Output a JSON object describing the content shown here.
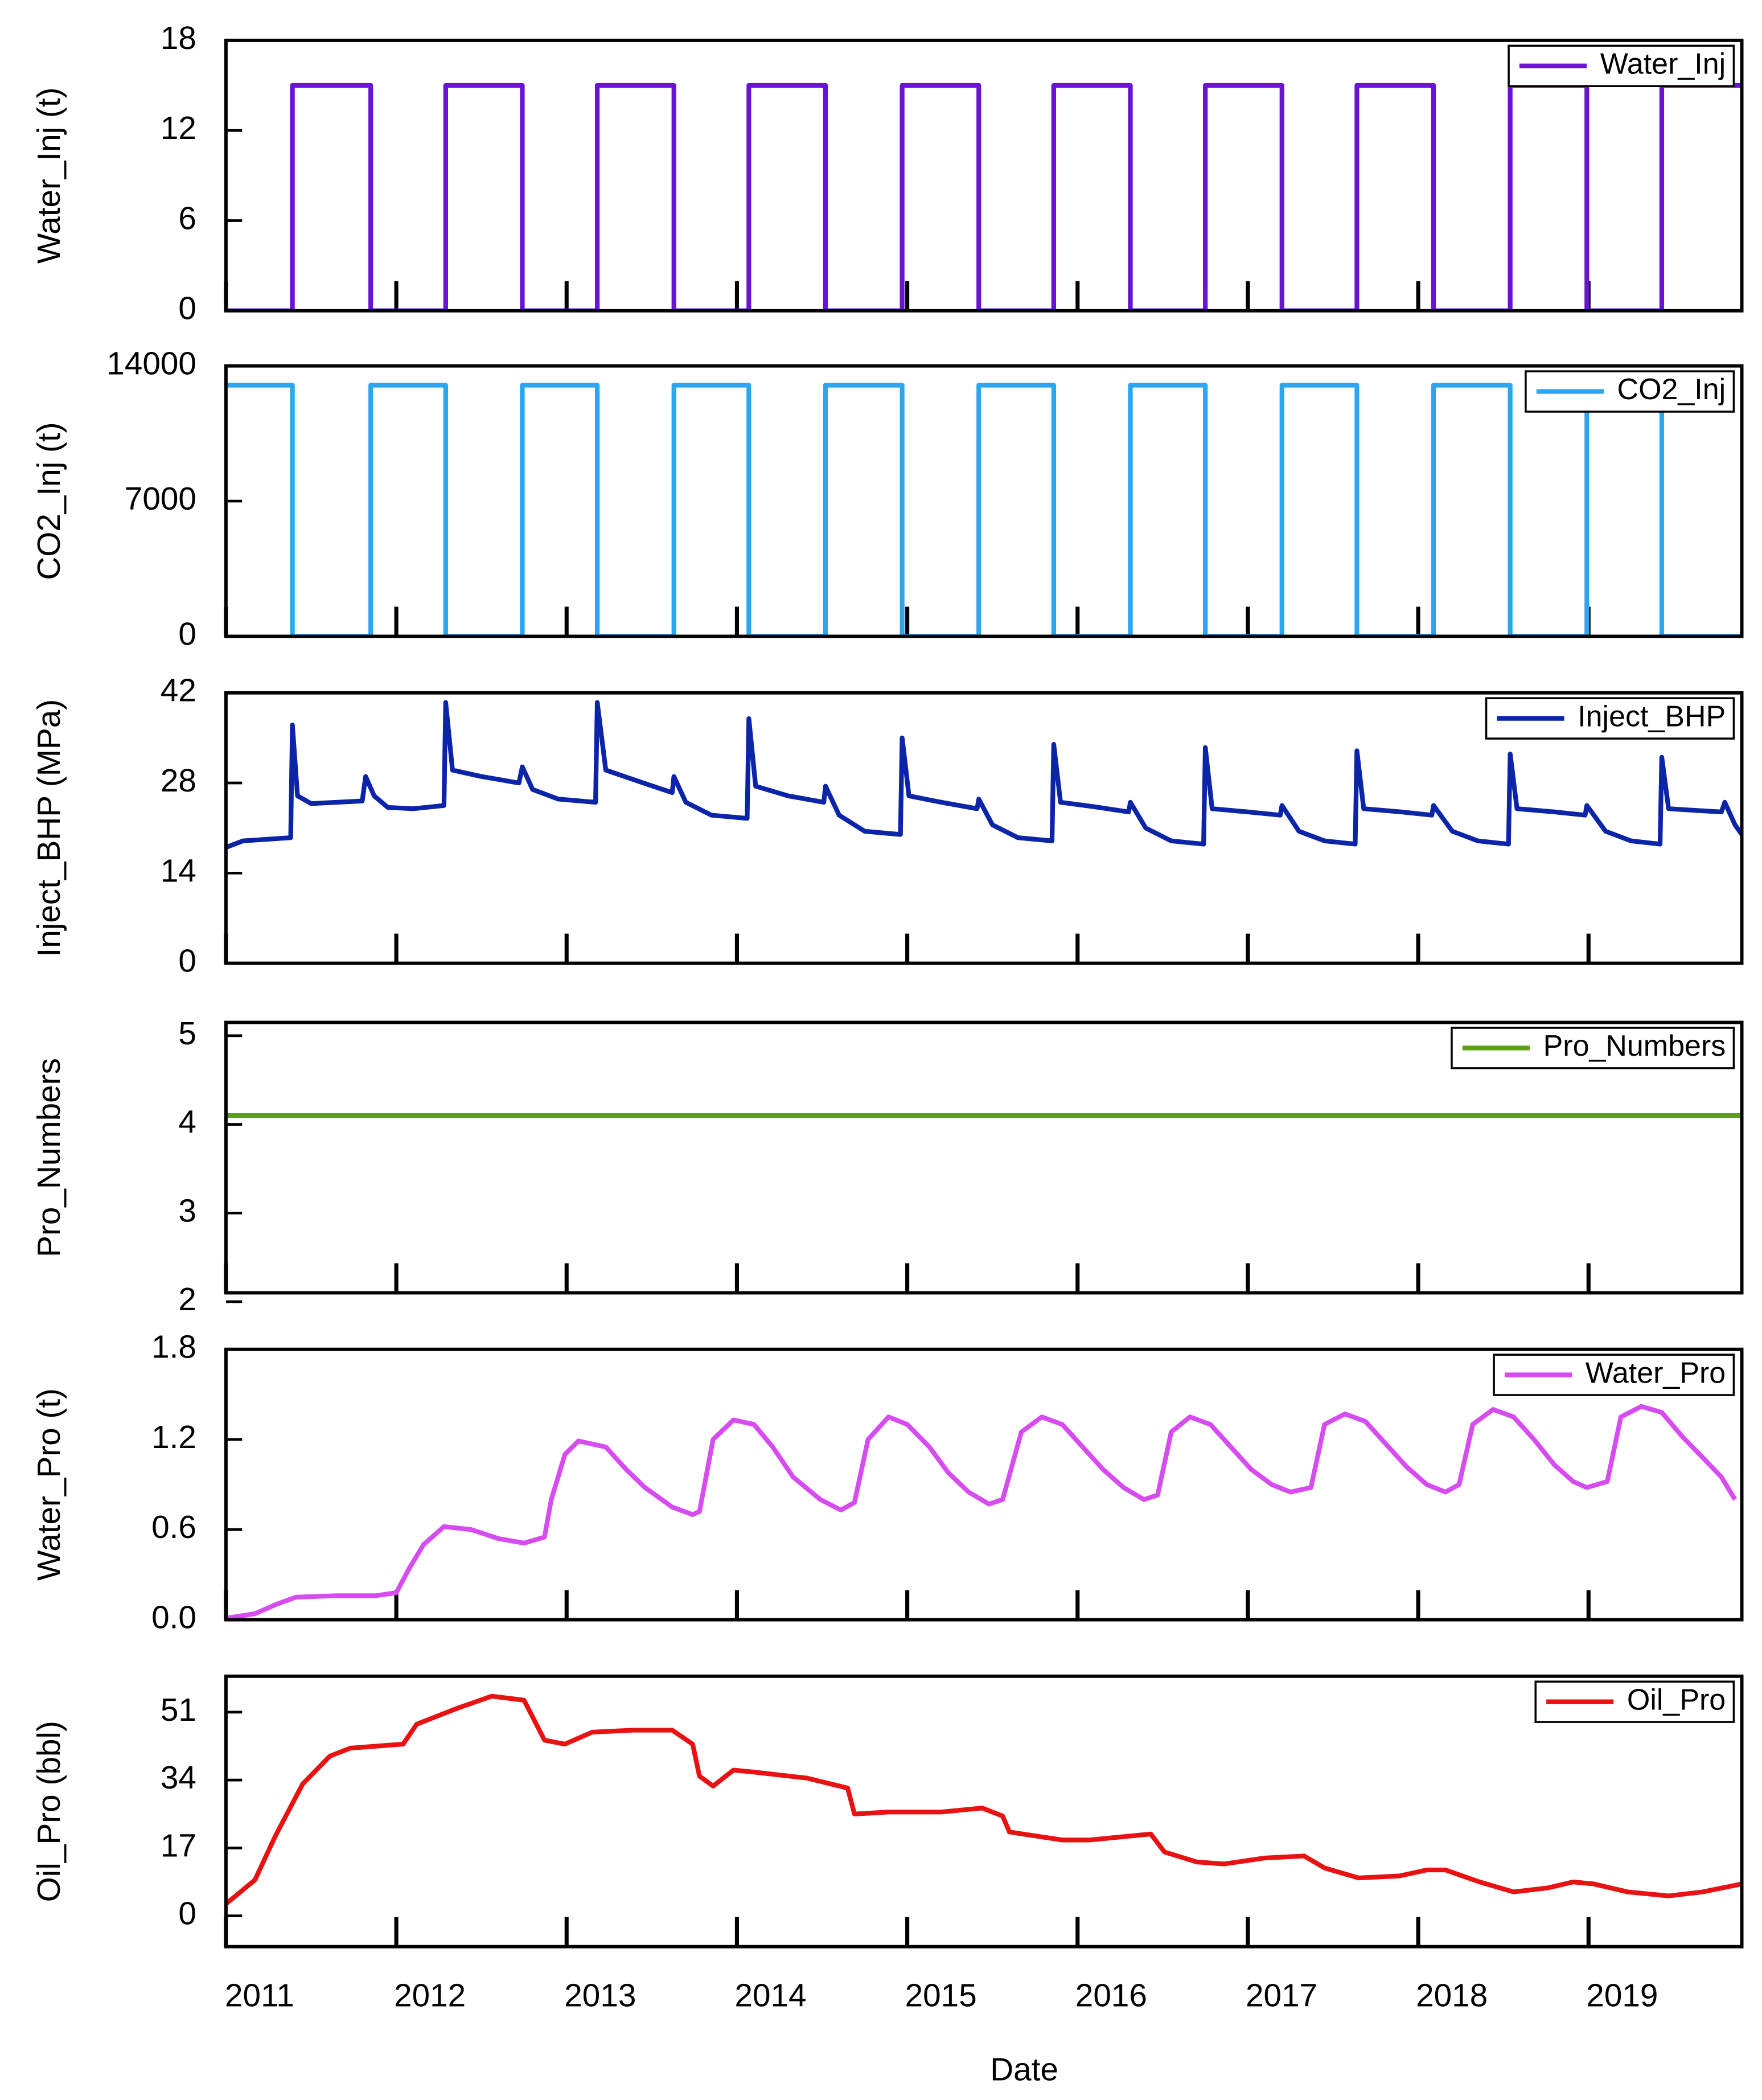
{
  "chart_data": [
    {
      "type": "line",
      "ylabel": "Water_Inj (t)",
      "legend": "upper right",
      "x": [
        2011.0,
        2011.39,
        2011.39,
        2011.85,
        2011.85,
        2012.29,
        2012.29,
        2012.74,
        2012.74,
        2013.18,
        2013.18,
        2013.63,
        2013.63,
        2014.07,
        2014.07,
        2014.52,
        2014.52,
        2014.97,
        2014.97,
        2015.42,
        2015.42,
        2015.86,
        2015.86,
        2016.31,
        2016.31,
        2016.75,
        2016.75,
        2017.2,
        2017.2,
        2017.64,
        2017.64,
        2018.09,
        2018.09,
        2018.54,
        2018.54,
        2018.99,
        2018.99,
        2019.43,
        2019.43,
        2019.9
      ],
      "series": [
        {
          "name": "Water_Inj",
          "color": "#6a12d6",
          "values": [
            0,
            0,
            15,
            15,
            0,
            0,
            15,
            15,
            0,
            0,
            15,
            15,
            0,
            0,
            15,
            15,
            0,
            0,
            15,
            15,
            0,
            0,
            15,
            15,
            0,
            0,
            15,
            15,
            0,
            0,
            15,
            15,
            0,
            0,
            15,
            15,
            0,
            0,
            15,
            15
          ]
        }
      ],
      "xlim": [
        2011,
        2019.9
      ],
      "xticks": [
        2011,
        2012,
        2013,
        2014,
        2015,
        2016,
        2017,
        2018,
        2019
      ],
      "ylim": [
        0,
        18
      ],
      "yticks": [
        0,
        6,
        12,
        18
      ]
    },
    {
      "type": "line",
      "ylabel": "CO2_Inj (t)",
      "legend": "upper right",
      "x": [
        2011.0,
        2011.39,
        2011.39,
        2011.85,
        2011.85,
        2012.29,
        2012.29,
        2012.74,
        2012.74,
        2013.18,
        2013.18,
        2013.63,
        2013.63,
        2014.07,
        2014.07,
        2014.52,
        2014.52,
        2014.97,
        2014.97,
        2015.42,
        2015.42,
        2015.86,
        2015.86,
        2016.31,
        2016.31,
        2016.75,
        2016.75,
        2017.2,
        2017.2,
        2017.64,
        2017.64,
        2018.09,
        2018.09,
        2018.54,
        2018.54,
        2018.99,
        2018.99,
        2019.43,
        2019.43,
        2019.9
      ],
      "series": [
        {
          "name": "CO2_Inj",
          "color": "#2ba7ef",
          "values": [
            13000,
            13000,
            0,
            0,
            13000,
            13000,
            0,
            0,
            13000,
            13000,
            0,
            0,
            13000,
            13000,
            0,
            0,
            13000,
            13000,
            0,
            0,
            13000,
            13000,
            0,
            0,
            13000,
            13000,
            0,
            0,
            13000,
            13000,
            0,
            0,
            13000,
            13000,
            0,
            0,
            13000,
            13000,
            0,
            0
          ]
        }
      ],
      "xlim": [
        2011,
        2019.9
      ],
      "xticks": [
        2011,
        2012,
        2013,
        2014,
        2015,
        2016,
        2017,
        2018,
        2019
      ],
      "ylim": [
        0,
        14000
      ],
      "yticks": [
        0,
        7000,
        14000
      ]
    },
    {
      "type": "line",
      "ylabel": "Inject_BHP (MPa)",
      "legend": "upper right",
      "x": [
        2011.0,
        2011.1,
        2011.38,
        2011.39,
        2011.42,
        2011.5,
        2011.8,
        2011.82,
        2011.87,
        2011.95,
        2012.1,
        2012.28,
        2012.29,
        2012.33,
        2012.5,
        2012.72,
        2012.74,
        2012.8,
        2012.95,
        2013.17,
        2013.18,
        2013.23,
        2013.45,
        2013.62,
        2013.63,
        2013.7,
        2013.85,
        2014.06,
        2014.07,
        2014.11,
        2014.3,
        2014.51,
        2014.52,
        2014.6,
        2014.75,
        2014.96,
        2014.97,
        2015.01,
        2015.2,
        2015.41,
        2015.42,
        2015.5,
        2015.65,
        2015.85,
        2015.86,
        2015.9,
        2016.1,
        2016.3,
        2016.31,
        2016.4,
        2016.55,
        2016.74,
        2016.75,
        2016.79,
        2017.0,
        2017.19,
        2017.2,
        2017.3,
        2017.45,
        2017.63,
        2017.64,
        2017.68,
        2017.9,
        2018.08,
        2018.09,
        2018.2,
        2018.35,
        2018.53,
        2018.54,
        2018.58,
        2018.8,
        2018.98,
        2018.99,
        2019.1,
        2019.25,
        2019.42,
        2019.43,
        2019.47,
        2019.65,
        2019.78,
        2019.8,
        2019.86,
        2019.9
      ],
      "series": [
        {
          "name": "Inject_BHP",
          "color": "#0b24a8",
          "values": [
            18,
            19,
            19.5,
            37,
            26,
            24.8,
            25.2,
            29,
            26,
            24.2,
            24,
            24.5,
            40.5,
            30,
            29,
            28,
            30.5,
            27,
            25.5,
            25,
            40.5,
            30,
            28,
            26.5,
            29,
            25,
            23,
            22.5,
            38,
            27.5,
            26,
            25,
            27.5,
            23,
            20.5,
            20,
            35,
            26,
            25,
            24,
            25.5,
            21.5,
            19.5,
            19,
            34,
            25,
            24.3,
            23.5,
            25,
            21,
            19,
            18.5,
            33.5,
            24,
            23.5,
            23,
            24.5,
            20.5,
            19,
            18.5,
            33,
            24,
            23.5,
            23,
            24.5,
            20.5,
            19,
            18.5,
            32.5,
            24,
            23.5,
            23,
            24.5,
            20.5,
            19,
            18.5,
            32,
            24,
            23.7,
            23.5,
            25,
            21.5,
            20
          ]
        }
      ],
      "xlim": [
        2011,
        2019.9
      ],
      "xticks": [
        2011,
        2012,
        2013,
        2014,
        2015,
        2016,
        2017,
        2018,
        2019
      ],
      "ylim": [
        0,
        42
      ],
      "yticks": [
        0,
        14,
        28,
        42
      ]
    },
    {
      "type": "line",
      "ylabel": "Pro_Numbers",
      "legend": "upper right",
      "x": [
        2011.0,
        2019.9
      ],
      "series": [
        {
          "name": "Pro_Numbers",
          "color": "#5c9f12",
          "values": [
            4.1,
            4.1
          ]
        }
      ],
      "xlim": [
        2011,
        2019.9
      ],
      "xticks": [
        2011,
        2012,
        2013,
        2014,
        2015,
        2016,
        2017,
        2018,
        2019
      ],
      "ylim": [
        2.1,
        5.15
      ],
      "yticks": [
        2,
        3,
        4,
        5
      ]
    },
    {
      "type": "line",
      "ylabel": "Water_Pro (t)",
      "legend": "upper right",
      "x": [
        2011.0,
        2011.17,
        2011.29,
        2011.41,
        2011.65,
        2011.88,
        2012.0,
        2012.08,
        2012.16,
        2012.28,
        2012.44,
        2012.6,
        2012.75,
        2012.87,
        2012.91,
        2012.99,
        2013.07,
        2013.23,
        2013.35,
        2013.46,
        2013.62,
        2013.74,
        2013.78,
        2013.86,
        2013.98,
        2014.1,
        2014.21,
        2014.33,
        2014.49,
        2014.61,
        2014.69,
        2014.77,
        2014.89,
        2015.0,
        2015.13,
        2015.24,
        2015.36,
        2015.48,
        2015.56,
        2015.67,
        2015.79,
        2015.91,
        2016.03,
        2016.15,
        2016.27,
        2016.39,
        2016.47,
        2016.55,
        2016.66,
        2016.78,
        2016.9,
        2017.02,
        2017.14,
        2017.25,
        2017.37,
        2017.45,
        2017.57,
        2017.69,
        2017.81,
        2017.93,
        2018.05,
        2018.16,
        2018.24,
        2018.32,
        2018.44,
        2018.56,
        2018.68,
        2018.8,
        2018.91,
        2018.99,
        2019.11,
        2019.19,
        2019.31,
        2019.43,
        2019.55,
        2019.67,
        2019.78,
        2019.86
      ],
      "series": [
        {
          "name": "Water_Pro",
          "color": "#d64cf0",
          "values": [
            0.01,
            0.04,
            0.1,
            0.15,
            0.16,
            0.16,
            0.18,
            0.35,
            0.5,
            0.62,
            0.6,
            0.54,
            0.51,
            0.55,
            0.8,
            1.1,
            1.19,
            1.15,
            1.0,
            0.88,
            0.75,
            0.7,
            0.72,
            1.2,
            1.33,
            1.3,
            1.15,
            0.95,
            0.8,
            0.73,
            0.78,
            1.2,
            1.35,
            1.3,
            1.15,
            0.98,
            0.85,
            0.77,
            0.8,
            1.25,
            1.35,
            1.3,
            1.15,
            1.0,
            0.88,
            0.8,
            0.83,
            1.25,
            1.35,
            1.3,
            1.15,
            1.0,
            0.9,
            0.85,
            0.88,
            1.3,
            1.37,
            1.32,
            1.17,
            1.02,
            0.9,
            0.85,
            0.9,
            1.3,
            1.4,
            1.35,
            1.2,
            1.03,
            0.92,
            0.88,
            0.92,
            1.35,
            1.42,
            1.38,
            1.22,
            1.08,
            0.95,
            0.8
          ]
        }
      ],
      "xlim": [
        2011,
        2019.9
      ],
      "xticks": [
        2011,
        2012,
        2013,
        2014,
        2015,
        2016,
        2017,
        2018,
        2019
      ],
      "ylim": [
        0,
        1.8
      ],
      "yticks": [
        {
          "value": 0,
          "label": "0.0"
        },
        0.6,
        1.2,
        1.8
      ]
    },
    {
      "type": "line",
      "ylabel": "Oil_Pro (bbl)",
      "xlabel": "Date",
      "legend": "upper right",
      "x": [
        2011.0,
        2011.17,
        2011.29,
        2011.45,
        2011.61,
        2011.73,
        2012.04,
        2012.12,
        2012.36,
        2012.56,
        2012.75,
        2012.87,
        2012.99,
        2013.15,
        2013.39,
        2013.62,
        2013.74,
        2013.78,
        2013.86,
        2013.98,
        2014.1,
        2014.41,
        2014.65,
        2014.69,
        2014.89,
        2015.2,
        2015.44,
        2015.56,
        2015.6,
        2015.91,
        2016.07,
        2016.31,
        2016.43,
        2016.51,
        2016.7,
        2016.86,
        2017.1,
        2017.33,
        2017.45,
        2017.65,
        2017.89,
        2018.05,
        2018.16,
        2018.36,
        2018.56,
        2018.76,
        2018.91,
        2019.03,
        2019.23,
        2019.47,
        2019.67,
        2019.9
      ],
      "series": [
        {
          "name": "Oil_Pro",
          "color": "#e81212",
          "values": [
            3,
            9,
            20,
            33,
            40,
            42,
            43,
            48,
            52,
            55,
            54,
            44,
            43,
            46,
            46.5,
            46.5,
            43,
            35,
            32.5,
            36.5,
            36,
            34.5,
            32,
            25.5,
            26,
            26,
            27,
            25,
            21,
            19,
            19,
            20,
            20.5,
            16,
            13.5,
            13,
            14.5,
            15,
            12,
            9.5,
            10,
            11.5,
            11.5,
            8.5,
            6,
            7,
            8.5,
            8,
            6,
            5,
            6,
            8
          ]
        }
      ],
      "xlim": [
        2011,
        2019.9
      ],
      "xticks": [
        2011,
        2012,
        2013,
        2014,
        2015,
        2016,
        2017,
        2018,
        2019
      ],
      "ylim": [
        -7.7,
        60
      ],
      "yticks": [
        0,
        17,
        34,
        51
      ]
    }
  ]
}
